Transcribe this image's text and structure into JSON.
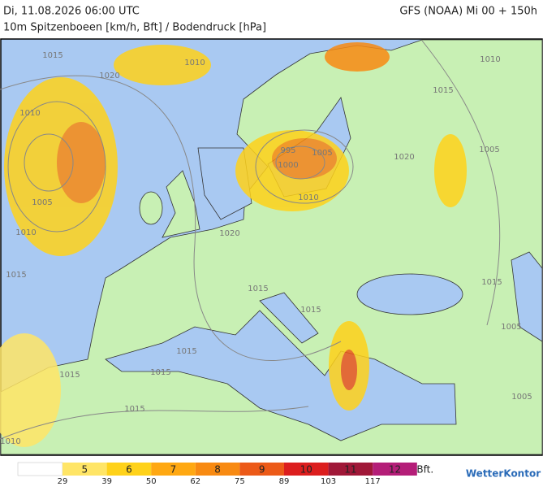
{
  "header": {
    "title": "Di, 11.08.2026 06:00 UTC",
    "subtitle": "10m Spitzenboeen [km/h, Bft] / Bodendruck [hPa]",
    "model": "GFS (NOAA) Mi 00 + 150h"
  },
  "map": {
    "isobar_labels": [
      1015,
      1010,
      1020,
      1010,
      1005,
      1010,
      1015,
      1010,
      1015,
      1005,
      1020,
      995,
      1000,
      1005,
      1010,
      1020,
      1015,
      1015,
      1015,
      1015,
      1015,
      1015,
      1015,
      1005,
      1005,
      1010
    ]
  },
  "legend": {
    "classes": [
      {
        "label": "5",
        "color": "#ffe566"
      },
      {
        "label": "6",
        "color": "#ffd21a"
      },
      {
        "label": "7",
        "color": "#ffa812"
      },
      {
        "label": "8",
        "color": "#f88a12"
      },
      {
        "label": "9",
        "color": "#ec5a18"
      },
      {
        "label": "10",
        "color": "#dc1e1e"
      },
      {
        "label": "11",
        "color": "#a01838"
      },
      {
        "label": "12",
        "color": "#b41e78"
      }
    ],
    "kmh": [
      29,
      39,
      50,
      62,
      75,
      89,
      103,
      117
    ],
    "unit": "Bft."
  },
  "logo": "WetterKontor"
}
